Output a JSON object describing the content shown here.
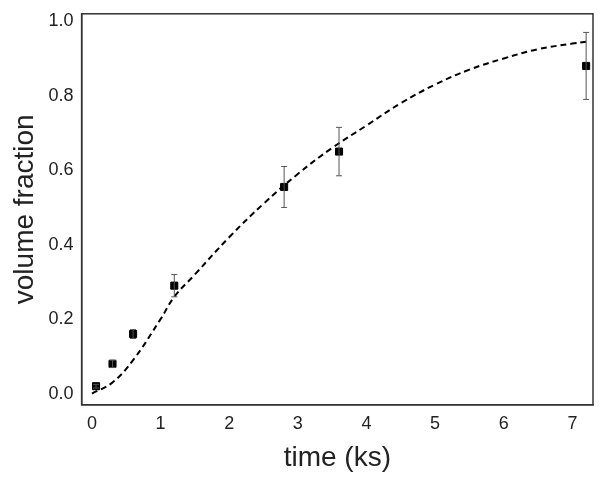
{
  "chart_data": {
    "type": "scatter",
    "x_label": "time (ks)",
    "y_label": "volume fraction",
    "xlim": [
      -0.15,
      7.3
    ],
    "ylim": [
      -0.03,
      1.02
    ],
    "xticks": [
      0,
      1,
      2,
      3,
      4,
      5,
      6,
      7
    ],
    "yticks": [
      {
        "value": 0,
        "label": "0.0"
      },
      0.2,
      0.4,
      0.6,
      0.8,
      {
        "value": 1,
        "label": "1.0"
      }
    ],
    "grid": false,
    "series": [
      {
        "type": "scatter",
        "color": "#000000",
        "marker": "square",
        "x": [
          0.06,
          0.3,
          0.6,
          1.2,
          2.8,
          3.6,
          7.2
        ],
        "values": [
          0.02,
          0.08,
          0.16,
          0.29,
          0.555,
          0.65,
          0.88
        ],
        "errors": [
          0.005,
          0.01,
          0.012,
          0.03,
          0.055,
          0.065,
          0.09
        ]
      },
      {
        "type": "line",
        "color": "#000000",
        "line_style": "dashed",
        "x": [
          0,
          0.3,
          0.6,
          1.0,
          1.2,
          1.5,
          2,
          2.5,
          3,
          3.5,
          4,
          4.5,
          5,
          5.5,
          6,
          6.5,
          7,
          7.2
        ],
        "values": [
          0,
          0.03,
          0.09,
          0.2,
          0.26,
          0.32,
          0.42,
          0.51,
          0.59,
          0.66,
          0.72,
          0.78,
          0.83,
          0.87,
          0.9,
          0.925,
          0.94,
          0.945
        ]
      }
    ]
  }
}
